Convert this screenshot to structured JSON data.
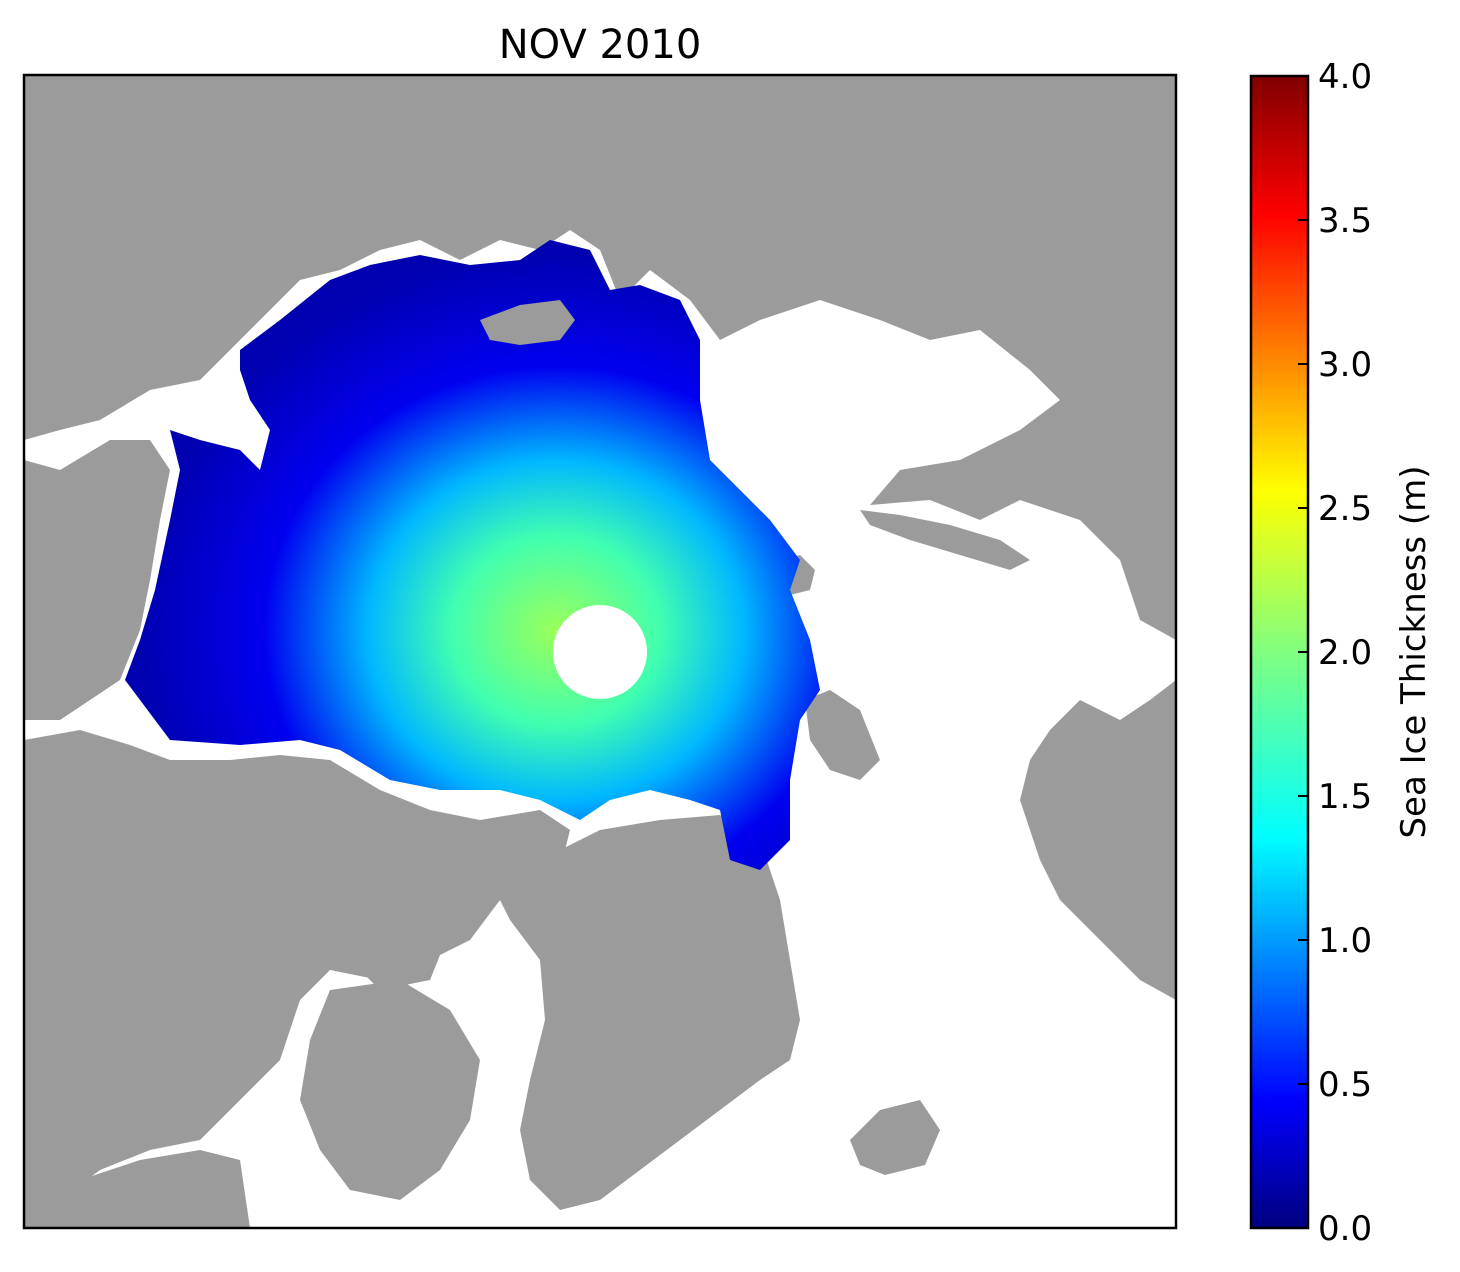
{
  "title": "NOV 2010",
  "colorbar": {
    "label": "Sea Ice Thickness (m)",
    "min": 0.0,
    "max": 4.0,
    "ticks": [
      "0.0",
      "0.5",
      "1.0",
      "1.5",
      "2.0",
      "2.5",
      "3.0",
      "3.5",
      "4.0"
    ],
    "colormap": "jet"
  },
  "colors": {
    "land": "#9b9b9b",
    "ocean": "#ffffff",
    "jet_stops": [
      "#000080",
      "#0000ff",
      "#0080ff",
      "#00ffff",
      "#80ff80",
      "#ffff00",
      "#ff8000",
      "#ff0000",
      "#800000"
    ]
  },
  "map": {
    "projection": "north-polar-stereographic",
    "pole_hole": "no data"
  }
}
